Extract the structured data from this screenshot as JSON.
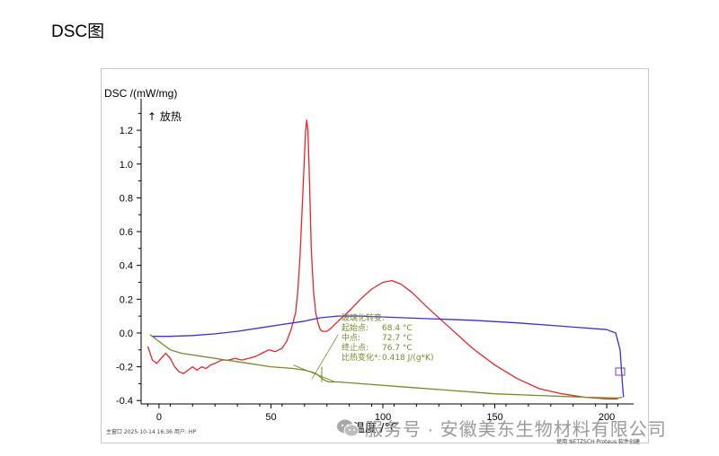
{
  "page_heading": "DSC图",
  "watermark_text": "服务号 · 安徽美东生物材料有限公司",
  "footer": {
    "left": "主窗口     2025-10-14 16:36     用户: HP",
    "right": "使用 NETZSCH Proteus 软件创建"
  },
  "chart_data": {
    "type": "line",
    "ylabel": "DSC /(mW/mg)",
    "xlabel": "温度 /°C",
    "exo_label": "↑ 放热",
    "xlim": [
      -8,
      210
    ],
    "ylim": [
      -0.42,
      1.36
    ],
    "x_ticks": [
      0,
      50,
      100,
      150,
      200
    ],
    "y_ticks": [
      -0.4,
      -0.2,
      0.0,
      0.2,
      0.4,
      0.6,
      0.8,
      1.0,
      1.2
    ],
    "series": [
      {
        "color": "#e8262a",
        "x": [
          -5,
          -3,
          -1,
          1,
          3,
          5,
          7,
          9,
          11,
          13,
          15,
          17,
          19,
          21,
          23,
          25,
          28,
          31,
          34,
          37,
          40,
          43,
          46,
          49,
          52,
          55,
          57,
          59,
          61,
          62,
          63,
          64,
          65,
          65.5,
          66,
          66.5,
          67,
          67.5,
          68,
          69,
          70,
          71,
          72,
          73,
          75,
          77,
          80,
          85,
          90,
          95,
          100,
          104,
          108,
          113,
          120,
          130,
          140,
          150,
          160,
          170,
          180,
          190,
          200,
          205
        ],
        "y": [
          -0.08,
          -0.16,
          -0.18,
          -0.15,
          -0.12,
          -0.15,
          -0.2,
          -0.23,
          -0.24,
          -0.22,
          -0.2,
          -0.22,
          -0.2,
          -0.21,
          -0.19,
          -0.18,
          -0.16,
          -0.16,
          -0.15,
          -0.16,
          -0.15,
          -0.14,
          -0.12,
          -0.1,
          -0.11,
          -0.09,
          -0.05,
          0.02,
          0.12,
          0.25,
          0.45,
          0.75,
          1.05,
          1.2,
          1.26,
          1.2,
          1.0,
          0.75,
          0.5,
          0.25,
          0.12,
          0.06,
          0.02,
          0.01,
          0.01,
          0.03,
          0.07,
          0.13,
          0.2,
          0.26,
          0.3,
          0.31,
          0.29,
          0.24,
          0.15,
          0.03,
          -0.09,
          -0.19,
          -0.27,
          -0.33,
          -0.36,
          -0.38,
          -0.39,
          -0.39
        ]
      },
      {
        "color": "#3a2fd6",
        "x": [
          -3,
          5,
          15,
          25,
          35,
          45,
          55,
          65,
          72,
          80,
          90,
          100,
          120,
          140,
          160,
          180,
          200,
          204,
          206,
          207,
          207.5
        ],
        "y": [
          -0.02,
          -0.02,
          -0.015,
          -0.005,
          0.01,
          0.03,
          0.05,
          0.07,
          0.09,
          0.1,
          0.1,
          0.095,
          0.085,
          0.075,
          0.06,
          0.04,
          0.02,
          0.0,
          -0.1,
          -0.3,
          -0.38
        ]
      },
      {
        "color": "#7a8a2a",
        "x": [
          -4,
          -1,
          2,
          5,
          10,
          20,
          30,
          40,
          50,
          60,
          65,
          68,
          70,
          72,
          74,
          76,
          78,
          80,
          90,
          110,
          130,
          150,
          170,
          190,
          205,
          207
        ],
        "y": [
          -0.01,
          -0.04,
          -0.07,
          -0.1,
          -0.12,
          -0.14,
          -0.16,
          -0.18,
          -0.2,
          -0.21,
          -0.22,
          -0.23,
          -0.24,
          -0.26,
          -0.28,
          -0.29,
          -0.29,
          -0.29,
          -0.3,
          -0.32,
          -0.34,
          -0.36,
          -0.37,
          -0.38,
          -0.385,
          -0.38
        ]
      }
    ],
    "annotation": {
      "title": "玻璃化转变:",
      "rows": [
        {
          "label": "起始点:",
          "value": "68.4 °C"
        },
        {
          "label": "中点:",
          "value": "72.7 °C"
        },
        {
          "label": "终止点:",
          "value": "76.7 °C"
        },
        {
          "label": "比热变化*:",
          "value": "0.418 J/(g*K)"
        }
      ],
      "color": "#7a8a2a"
    }
  }
}
